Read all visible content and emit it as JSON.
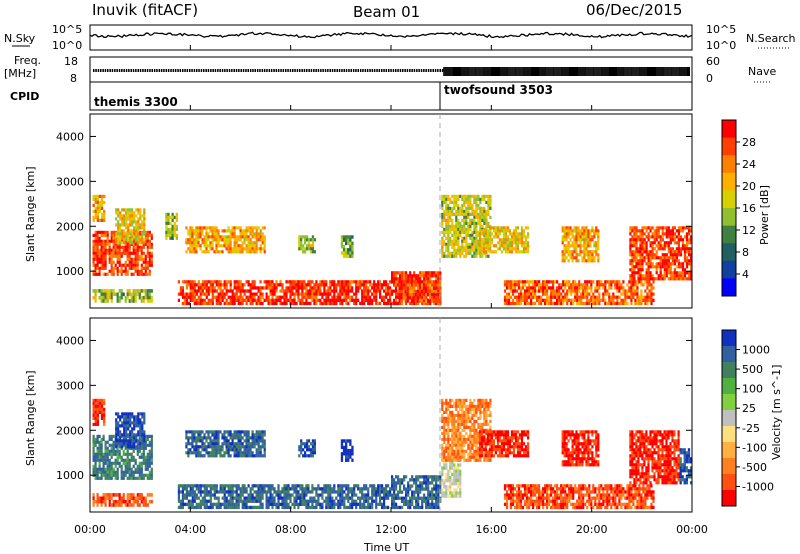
{
  "header": {
    "station": "Inuvik (fitACF)",
    "beam": "Beam 01",
    "date": "06/Dec/2015"
  },
  "top_panels": {
    "noise": {
      "left_label": "N.Sky",
      "right_label": "N.Search",
      "ticks_left": [
        "10^5",
        "10^0"
      ],
      "ticks_right": [
        "10^5",
        "10^0"
      ]
    },
    "freq": {
      "left_label_1": "Freq.",
      "left_label_2": "[MHz]",
      "right_label": "Nave",
      "ticks_left": [
        "18",
        "8"
      ],
      "ticks_right": [
        "60",
        "0"
      ]
    },
    "cpid": {
      "label": "CPID",
      "modes": [
        {
          "name": "themis 3300",
          "start_hour": 0
        },
        {
          "name": "twofsound 3503",
          "start_hour": 14
        }
      ]
    }
  },
  "power_panel": {
    "ylabel": "Slant Range [km]",
    "colorbar_label": "Power [dB]",
    "colorbar_ticks": [
      "28",
      "24",
      "20",
      "16",
      "12",
      "8",
      "4"
    ],
    "colorbar_colors": [
      "#ff0000",
      "#ff4000",
      "#ff8000",
      "#ffb000",
      "#d8d000",
      "#90c030",
      "#408040",
      "#206060",
      "#1040a0",
      "#0000ff"
    ]
  },
  "velocity_panel": {
    "ylabel": "Slant Range [km]",
    "colorbar_label": "Velocity [m s^-1]",
    "colorbar_ticks": [
      "1000",
      "500",
      "100",
      "25",
      "-25",
      "-100",
      "-500",
      "-1000"
    ],
    "colorbar_colors": [
      "#1030c0",
      "#3060a0",
      "#408060",
      "#50b040",
      "#80d040",
      "#c0c0c0",
      "#ffe080",
      "#ffb040",
      "#ff8020",
      "#ff5010",
      "#ff0000"
    ]
  },
  "y_ticks": [
    "4000",
    "3000",
    "2000",
    "1000"
  ],
  "x_axis": {
    "label": "Time UT",
    "ticks": [
      "00:00",
      "04:00",
      "08:00",
      "12:00",
      "16:00",
      "20:00",
      "00:00"
    ]
  },
  "chart_data": {
    "type": "heatmap",
    "x_unit": "hours UT",
    "xlim": [
      0,
      24
    ],
    "ylim": [
      180,
      4500
    ],
    "power_clim": [
      0,
      30
    ],
    "velocity_clim": [
      -1000,
      1000
    ],
    "power_regions": [
      {
        "t0": 0.1,
        "t1": 2.5,
        "r0": 900,
        "r1": 1900,
        "v": 26
      },
      {
        "t0": 0.1,
        "t1": 2.5,
        "r0": 300,
        "r1": 600,
        "v": 14
      },
      {
        "t0": 1.0,
        "t1": 2.2,
        "r0": 1600,
        "r1": 2400,
        "v": 18
      },
      {
        "t0": 0.1,
        "t1": 0.6,
        "r0": 2100,
        "r1": 2700,
        "v": 20
      },
      {
        "t0": 3.5,
        "t1": 12.0,
        "r0": 250,
        "r1": 800,
        "v": 27
      },
      {
        "t0": 3.8,
        "t1": 7.0,
        "r0": 1400,
        "r1": 2000,
        "v": 20
      },
      {
        "t0": 3.0,
        "t1": 3.5,
        "r0": 1700,
        "r1": 2300,
        "v": 14
      },
      {
        "t0": 8.3,
        "t1": 9.0,
        "r0": 1400,
        "r1": 1800,
        "v": 14
      },
      {
        "t0": 10.0,
        "t1": 10.5,
        "r0": 1300,
        "r1": 1800,
        "v": 12
      },
      {
        "t0": 12.0,
        "t1": 14.0,
        "r0": 250,
        "r1": 1000,
        "v": 27
      },
      {
        "t0": 12.3,
        "t1": 14.0,
        "r0": 300,
        "r1": 800,
        "v": 26
      },
      {
        "t0": 14.0,
        "t1": 16.0,
        "r0": 1300,
        "r1": 2700,
        "v": 16
      },
      {
        "t0": 15.5,
        "t1": 17.5,
        "r0": 1400,
        "r1": 2000,
        "v": 18
      },
      {
        "t0": 16.5,
        "t1": 22.5,
        "r0": 250,
        "r1": 800,
        "v": 24
      },
      {
        "t0": 18.8,
        "t1": 20.3,
        "r0": 1200,
        "r1": 2000,
        "v": 20
      },
      {
        "t0": 21.5,
        "t1": 24.0,
        "r0": 800,
        "r1": 2000,
        "v": 26
      }
    ],
    "velocity_regions": [
      {
        "t0": 0.1,
        "t1": 2.5,
        "r0": 900,
        "r1": 1900,
        "v": 60
      },
      {
        "t0": 1.0,
        "t1": 2.2,
        "r0": 1600,
        "r1": 2400,
        "v": 300
      },
      {
        "t0": 0.1,
        "t1": 2.5,
        "r0": 300,
        "r1": 600,
        "v": -120
      },
      {
        "t0": 0.1,
        "t1": 0.6,
        "r0": 2100,
        "r1": 2700,
        "v": -300
      },
      {
        "t0": 3.5,
        "t1": 12.0,
        "r0": 250,
        "r1": 800,
        "v": 110
      },
      {
        "t0": 3.8,
        "t1": 7.0,
        "r0": 1400,
        "r1": 2000,
        "v": 120
      },
      {
        "t0": 8.3,
        "t1": 9.0,
        "r0": 1400,
        "r1": 1800,
        "v": 200
      },
      {
        "t0": 10.0,
        "t1": 10.5,
        "r0": 1300,
        "r1": 1800,
        "v": 600
      },
      {
        "t0": 12.0,
        "t1": 14.0,
        "r0": 250,
        "r1": 1000,
        "v": 120
      },
      {
        "t0": 14.0,
        "t1": 14.8,
        "r0": 500,
        "r1": 1400,
        "v": 0
      },
      {
        "t0": 14.0,
        "t1": 16.0,
        "r0": 1300,
        "r1": 2700,
        "v": -40
      },
      {
        "t0": 15.5,
        "t1": 17.5,
        "r0": 1400,
        "r1": 2000,
        "v": -350
      },
      {
        "t0": 16.5,
        "t1": 22.5,
        "r0": 250,
        "r1": 800,
        "v": -150
      },
      {
        "t0": 18.8,
        "t1": 20.3,
        "r0": 1200,
        "r1": 2000,
        "v": -400
      },
      {
        "t0": 21.5,
        "t1": 23.5,
        "r0": 800,
        "r1": 2000,
        "v": -350
      },
      {
        "t0": 23.5,
        "t1": 24.0,
        "r0": 800,
        "r1": 1600,
        "v": 150
      }
    ]
  }
}
